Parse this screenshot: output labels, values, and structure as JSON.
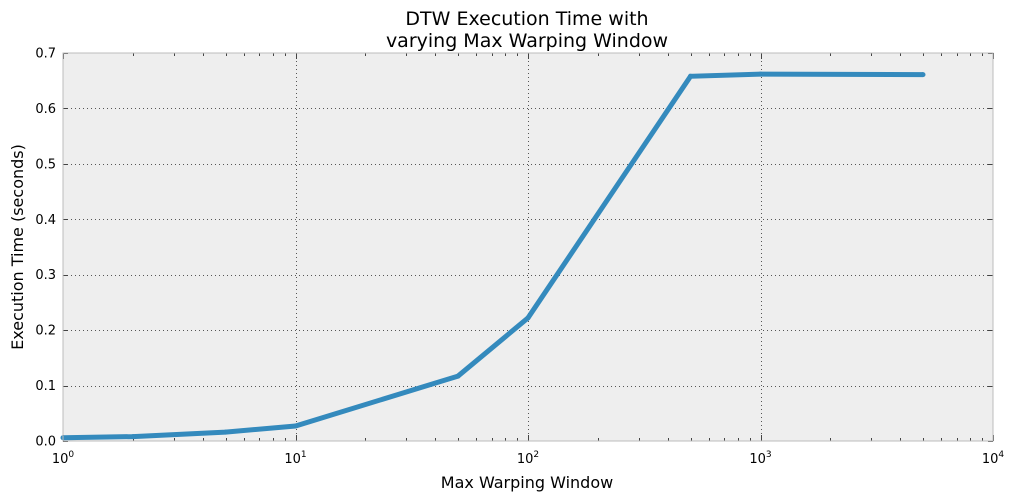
{
  "chart_data": {
    "type": "line",
    "title_line1": "DTW Execution Time with",
    "title_line2": "varying Max Warping Window",
    "xlabel": "Max Warping Window",
    "ylabel": "Execution Time (seconds)",
    "xscale": "log",
    "xlim": [
      1,
      10000
    ],
    "ylim": [
      0,
      0.7
    ],
    "grid": true,
    "legend": "none",
    "x_ticks": [
      {
        "base": "10",
        "exp": "0",
        "value": 1
      },
      {
        "base": "10",
        "exp": "1",
        "value": 10
      },
      {
        "base": "10",
        "exp": "2",
        "value": 100
      },
      {
        "base": "10",
        "exp": "3",
        "value": 1000
      },
      {
        "base": "10",
        "exp": "4",
        "value": 10000
      }
    ],
    "y_ticks": [
      {
        "label": "0.0",
        "value": 0.0
      },
      {
        "label": "0.1",
        "value": 0.1
      },
      {
        "label": "0.2",
        "value": 0.2
      },
      {
        "label": "0.3",
        "value": 0.3
      },
      {
        "label": "0.4",
        "value": 0.4
      },
      {
        "label": "0.5",
        "value": 0.5
      },
      {
        "label": "0.6",
        "value": 0.6
      },
      {
        "label": "0.7",
        "value": 0.7
      }
    ],
    "series": [
      {
        "color": "#348abd",
        "x": [
          1,
          2,
          5,
          10,
          50,
          100,
          500,
          1000,
          5000
        ],
        "y": [
          0.006,
          0.008,
          0.016,
          0.027,
          0.117,
          0.222,
          0.658,
          0.662,
          0.661
        ]
      }
    ],
    "colors": {
      "plot_background": "#eeeeee",
      "grid": "#555555",
      "spine": "#bcbcbc"
    }
  }
}
